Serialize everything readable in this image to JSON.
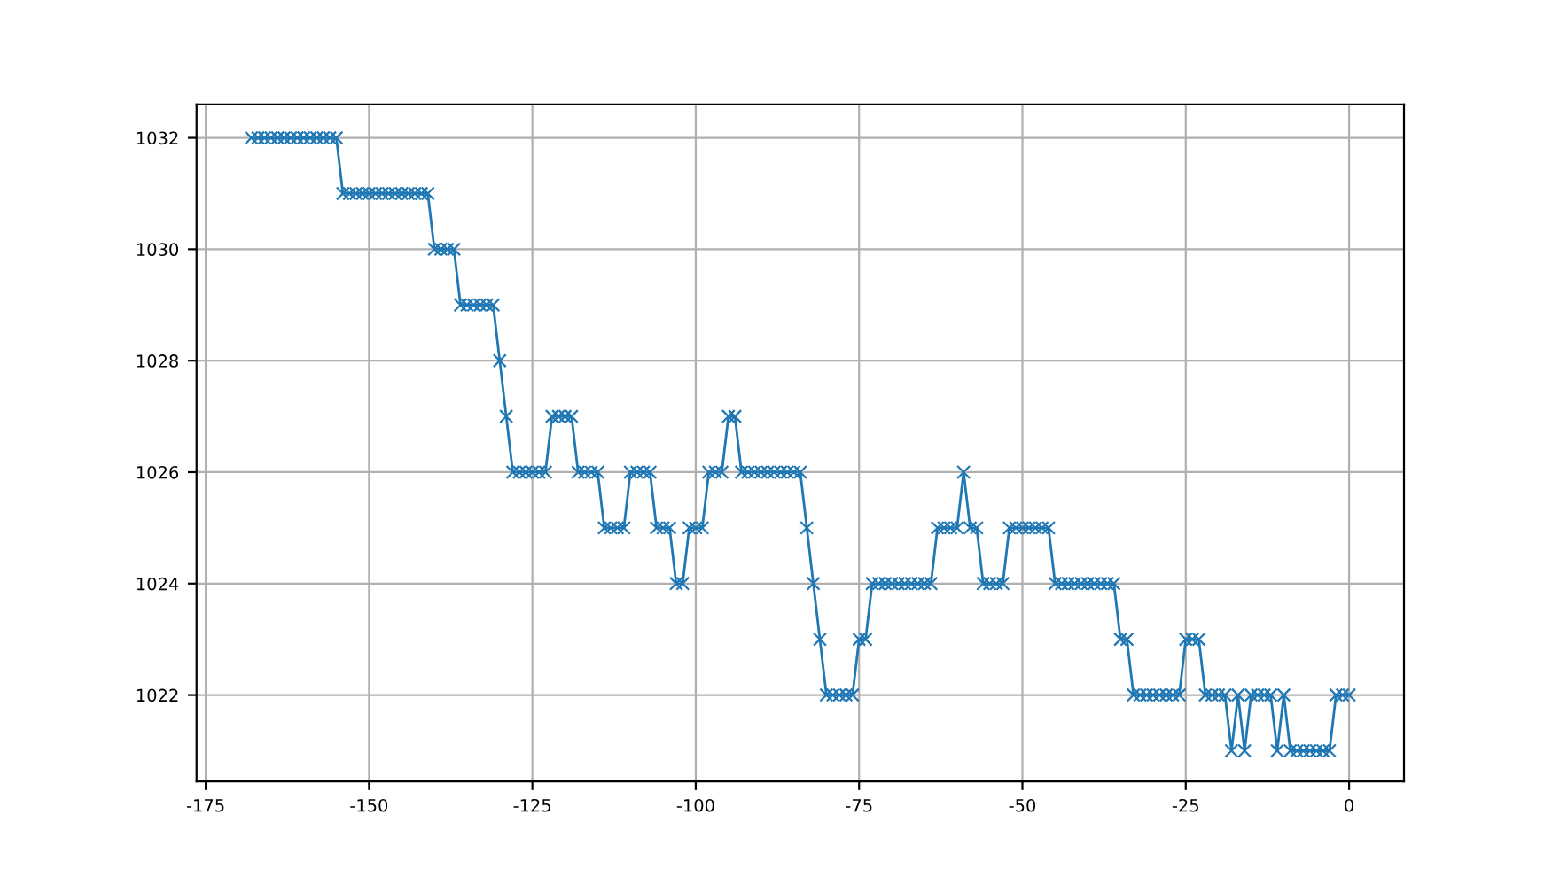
{
  "chart_data": {
    "type": "line",
    "x": [
      -168,
      -167,
      -166,
      -165,
      -164,
      -163,
      -162,
      -161,
      -160,
      -159,
      -158,
      -157,
      -156,
      -155,
      -154,
      -153,
      -152,
      -151,
      -150,
      -149,
      -148,
      -147,
      -146,
      -145,
      -144,
      -143,
      -142,
      -141,
      -140,
      -139,
      -138,
      -137,
      -136,
      -135,
      -134,
      -133,
      -132,
      -131,
      -130,
      -129,
      -128,
      -127,
      -126,
      -125,
      -124,
      -123,
      -122,
      -121,
      -120,
      -119,
      -118,
      -117,
      -116,
      -115,
      -114,
      -113,
      -112,
      -111,
      -110,
      -109,
      -108,
      -107,
      -106,
      -105,
      -104,
      -103,
      -102,
      -101,
      -100,
      -99,
      -98,
      -97,
      -96,
      -95,
      -94,
      -93,
      -92,
      -91,
      -90,
      -89,
      -88,
      -87,
      -86,
      -85,
      -84,
      -83,
      -82,
      -81,
      -80,
      -79,
      -78,
      -77,
      -76,
      -75,
      -74,
      -73,
      -72,
      -71,
      -70,
      -69,
      -68,
      -67,
      -66,
      -65,
      -64,
      -63,
      -62,
      -61,
      -60,
      -59,
      -58,
      -57,
      -56,
      -55,
      -54,
      -53,
      -52,
      -51,
      -50,
      -49,
      -48,
      -47,
      -46,
      -45,
      -44,
      -43,
      -42,
      -41,
      -40,
      -39,
      -38,
      -37,
      -36,
      -35,
      -34,
      -33,
      -32,
      -31,
      -30,
      -29,
      -28,
      -27,
      -26,
      -25,
      -24,
      -23,
      -22,
      -21,
      -20,
      -19,
      -18,
      -17,
      -16,
      -15,
      -14,
      -13,
      -12,
      -11,
      -10,
      -9,
      -8,
      -7,
      -6,
      -5,
      -4,
      -3,
      -2,
      -1,
      0
    ],
    "series": [
      {
        "color": "#1f77b4",
        "values": [
          1032,
          1032,
          1032,
          1032,
          1032,
          1032,
          1032,
          1032,
          1032,
          1032,
          1032,
          1032,
          1032,
          1032,
          1031,
          1031,
          1031,
          1031,
          1031,
          1031,
          1031,
          1031,
          1031,
          1031,
          1031,
          1031,
          1031,
          1031,
          1030,
          1030,
          1030,
          1030,
          1029,
          1029,
          1029,
          1029,
          1029,
          1029,
          1028,
          1027,
          1026,
          1026,
          1026,
          1026,
          1026,
          1026,
          1027,
          1027,
          1027,
          1027,
          1026,
          1026,
          1026,
          1026,
          1025,
          1025,
          1025,
          1025,
          1026,
          1026,
          1026,
          1026,
          1025,
          1025,
          1025,
          1024,
          1024,
          1025,
          1025,
          1025,
          1026,
          1026,
          1026,
          1027,
          1027,
          1026,
          1026,
          1026,
          1026,
          1026,
          1026,
          1026,
          1026,
          1026,
          1026,
          1025,
          1024,
          1023,
          1022,
          1022,
          1022,
          1022,
          1022,
          1023,
          1023,
          1024,
          1024,
          1024,
          1024,
          1024,
          1024,
          1024,
          1024,
          1024,
          1024,
          1025,
          1025,
          1025,
          1025,
          1026,
          1025,
          1025,
          1024,
          1024,
          1024,
          1024,
          1025,
          1025,
          1025,
          1025,
          1025,
          1025,
          1025,
          1024,
          1024,
          1024,
          1024,
          1024,
          1024,
          1024,
          1024,
          1024,
          1024,
          1023,
          1023,
          1022,
          1022,
          1022,
          1022,
          1022,
          1022,
          1022,
          1022,
          1023,
          1023,
          1023,
          1022,
          1022,
          1022,
          1022,
          1021,
          1022,
          1021,
          1022,
          1022,
          1022,
          1022,
          1021,
          1022,
          1021,
          1021,
          1021,
          1021,
          1021,
          1021,
          1021,
          1022,
          1022,
          1022
        ]
      }
    ],
    "xlim": [
      -176.4,
      8.4
    ],
    "ylim": [
      1020.45,
      1032.6
    ],
    "xticks": [
      -175,
      -150,
      -125,
      -100,
      -75,
      -50,
      -25,
      0
    ],
    "yticks": [
      1022,
      1024,
      1026,
      1028,
      1030,
      1032
    ],
    "grid": true,
    "marker": "cross",
    "line_style": "solid"
  }
}
